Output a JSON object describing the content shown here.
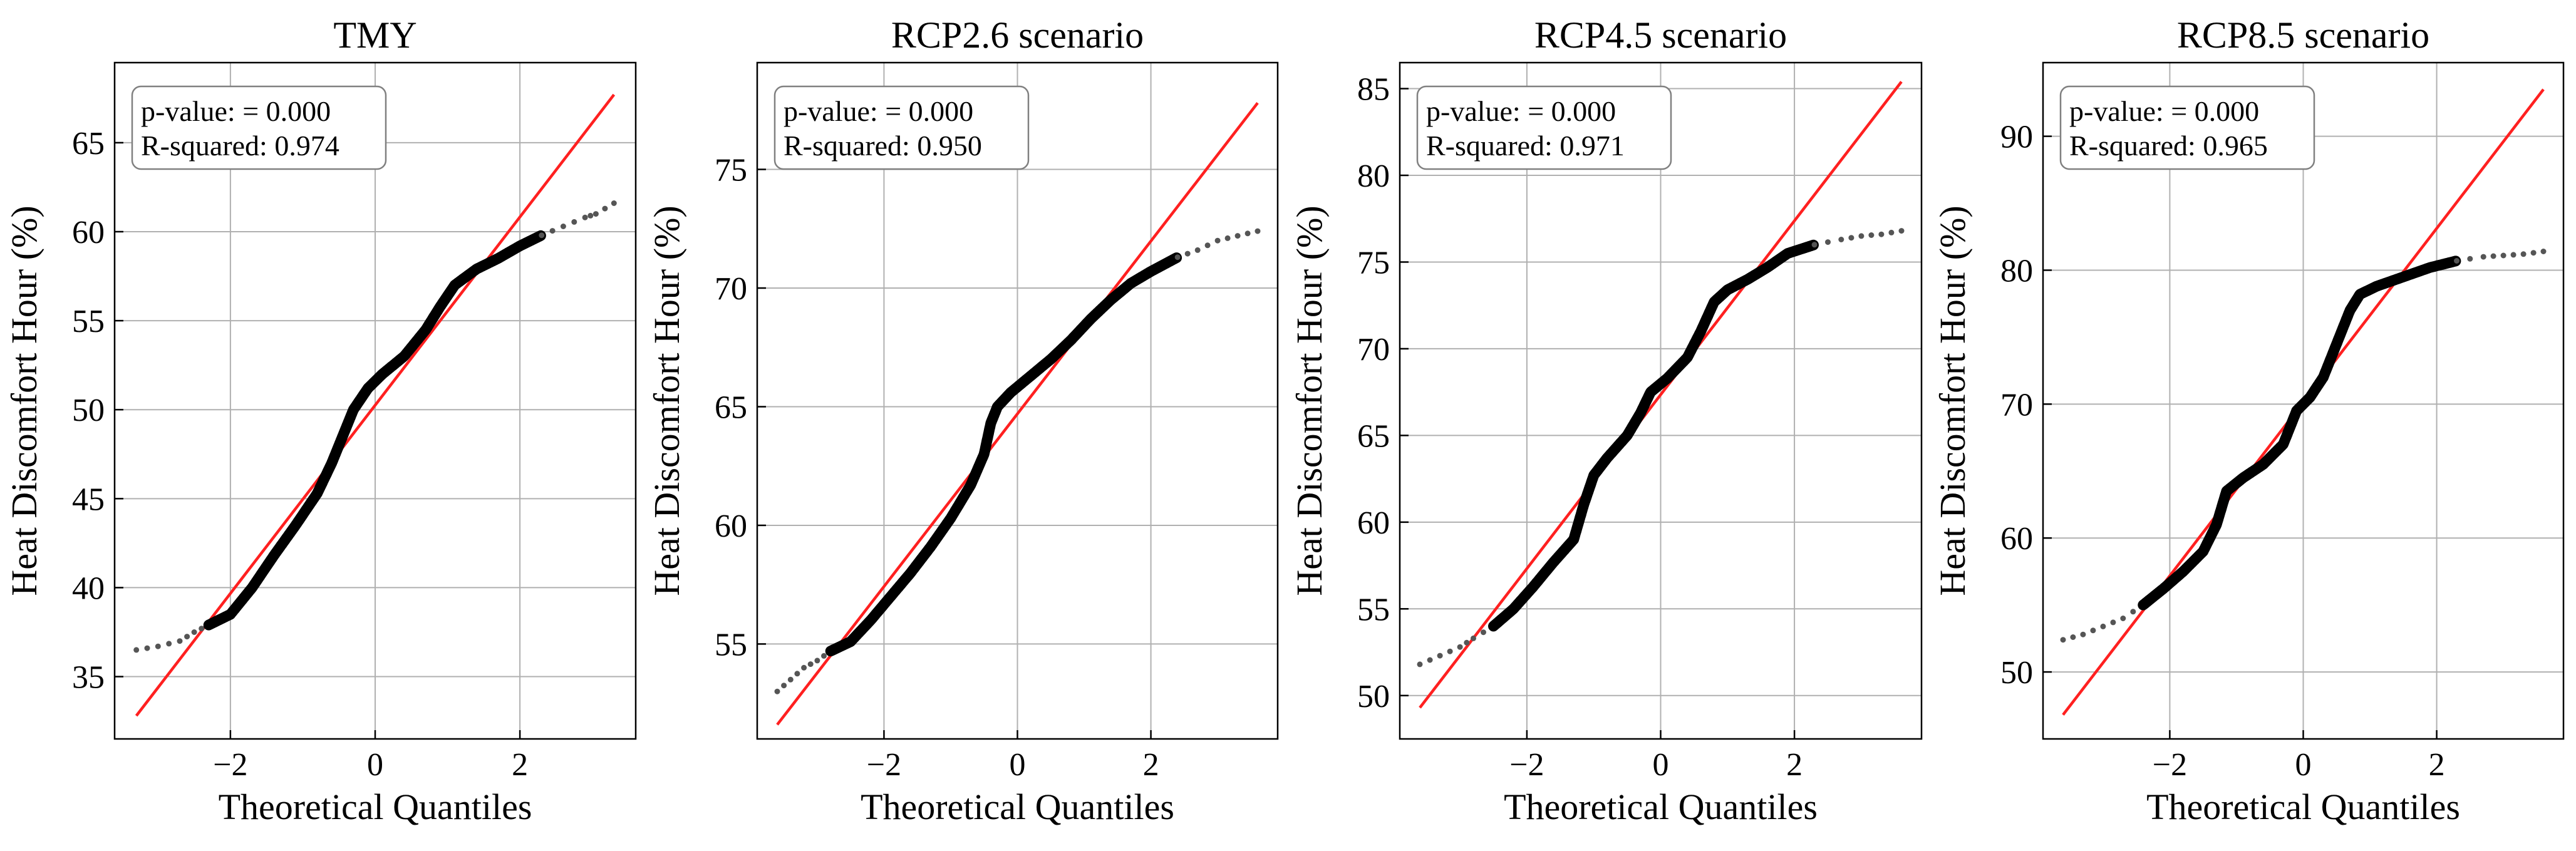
{
  "chart_data": [
    {
      "type": "scatter",
      "title": "TMY",
      "xlabel": "Theoretical Quantiles",
      "ylabel": "Heat Discomfort Hour (%)",
      "xlim": [
        -3.6,
        3.6
      ],
      "ylim": [
        31.5,
        69.5
      ],
      "xticks": [
        -2,
        0,
        2
      ],
      "xtick_labels": [
        "−2",
        "0",
        "2"
      ],
      "yticks": [
        35,
        40,
        45,
        50,
        55,
        60,
        65
      ],
      "ytick_labels": [
        "35",
        "40",
        "45",
        "50",
        "55",
        "60",
        "65"
      ],
      "annotation": {
        "pvalue": "p-value: = 0.000",
        "rsquared": "R-squared: 0.974"
      },
      "fit_line": {
        "x": [
          -3.3,
          3.3
        ],
        "y": [
          32.8,
          67.7
        ]
      },
      "quantiles": [
        [
          -3.3,
          36.5
        ],
        [
          -3.0,
          36.7
        ],
        [
          -2.7,
          37.0
        ],
        [
          -2.5,
          37.5
        ],
        [
          -2.3,
          37.9
        ],
        [
          -2.0,
          38.5
        ],
        [
          -1.7,
          40.0
        ],
        [
          -1.4,
          41.8
        ],
        [
          -1.1,
          43.5
        ],
        [
          -0.8,
          45.3
        ],
        [
          -0.6,
          47.0
        ],
        [
          -0.45,
          48.5
        ],
        [
          -0.3,
          50.0
        ],
        [
          -0.1,
          51.2
        ],
        [
          0.1,
          52.0
        ],
        [
          0.4,
          53.0
        ],
        [
          0.7,
          54.5
        ],
        [
          0.9,
          55.8
        ],
        [
          1.1,
          57.0
        ],
        [
          1.4,
          57.9
        ],
        [
          1.7,
          58.5
        ],
        [
          2.0,
          59.2
        ],
        [
          2.3,
          59.8
        ],
        [
          2.6,
          60.3
        ],
        [
          2.9,
          60.8
        ],
        [
          3.05,
          61.0
        ],
        [
          3.3,
          61.6
        ]
      ]
    },
    {
      "type": "scatter",
      "title": "RCP2.6 scenario",
      "xlabel": "Theoretical Quantiles",
      "ylabel": "Heat Discomfort Hour (%)",
      "xlim": [
        -3.9,
        3.9
      ],
      "ylim": [
        51.0,
        79.5
      ],
      "xticks": [
        -2,
        0,
        2
      ],
      "xtick_labels": [
        "−2",
        "0",
        "2"
      ],
      "yticks": [
        55,
        60,
        65,
        70,
        75
      ],
      "ytick_labels": [
        "55",
        "60",
        "65",
        "70",
        "75"
      ],
      "annotation": {
        "pvalue": "p-value: = 0.000",
        "rsquared": "R-squared: 0.950"
      },
      "fit_line": {
        "x": [
          -3.6,
          3.6
        ],
        "y": [
          51.6,
          77.8
        ]
      },
      "quantiles": [
        [
          -3.6,
          53.0
        ],
        [
          -3.4,
          53.5
        ],
        [
          -3.2,
          54.0
        ],
        [
          -3.0,
          54.3
        ],
        [
          -2.8,
          54.7
        ],
        [
          -2.5,
          55.1
        ],
        [
          -2.2,
          56.0
        ],
        [
          -1.9,
          57.0
        ],
        [
          -1.6,
          58.0
        ],
        [
          -1.3,
          59.1
        ],
        [
          -1.0,
          60.3
        ],
        [
          -0.7,
          61.7
        ],
        [
          -0.5,
          63.0
        ],
        [
          -0.4,
          64.3
        ],
        [
          -0.3,
          65.0
        ],
        [
          -0.1,
          65.6
        ],
        [
          0.2,
          66.3
        ],
        [
          0.5,
          67.0
        ],
        [
          0.8,
          67.8
        ],
        [
          1.1,
          68.7
        ],
        [
          1.4,
          69.5
        ],
        [
          1.7,
          70.2
        ],
        [
          2.0,
          70.7
        ],
        [
          2.4,
          71.3
        ],
        [
          2.7,
          71.6
        ],
        [
          3.0,
          72.0
        ],
        [
          3.3,
          72.2
        ],
        [
          3.6,
          72.4
        ]
      ]
    },
    {
      "type": "scatter",
      "title": "RCP4.5 scenario",
      "xlabel": "Theoretical Quantiles",
      "ylabel": "Heat Discomfort Hour (%)",
      "xlim": [
        -3.9,
        3.9
      ],
      "ylim": [
        47.5,
        86.5
      ],
      "xticks": [
        -2,
        0,
        2
      ],
      "xtick_labels": [
        "−2",
        "0",
        "2"
      ],
      "yticks": [
        50,
        55,
        60,
        65,
        70,
        75,
        80,
        85
      ],
      "ytick_labels": [
        "50",
        "55",
        "60",
        "65",
        "70",
        "75",
        "80",
        "85"
      ],
      "annotation": {
        "pvalue": "p-value: = 0.000",
        "rsquared": "R-squared: 0.971"
      },
      "fit_line": {
        "x": [
          -3.6,
          3.6
        ],
        "y": [
          49.3,
          85.4
        ]
      },
      "quantiles": [
        [
          -3.6,
          51.8
        ],
        [
          -3.3,
          52.3
        ],
        [
          -3.0,
          52.8
        ],
        [
          -2.8,
          53.3
        ],
        [
          -2.5,
          54.0
        ],
        [
          -2.2,
          55.0
        ],
        [
          -1.9,
          56.3
        ],
        [
          -1.6,
          57.7
        ],
        [
          -1.3,
          59.0
        ],
        [
          -1.15,
          61.0
        ],
        [
          -1.0,
          62.7
        ],
        [
          -0.8,
          63.7
        ],
        [
          -0.5,
          65.0
        ],
        [
          -0.3,
          66.3
        ],
        [
          -0.15,
          67.5
        ],
        [
          0.1,
          68.3
        ],
        [
          0.4,
          69.5
        ],
        [
          0.6,
          71.0
        ],
        [
          0.8,
          72.7
        ],
        [
          1.0,
          73.4
        ],
        [
          1.3,
          74.0
        ],
        [
          1.6,
          74.7
        ],
        [
          1.9,
          75.5
        ],
        [
          2.3,
          76.0
        ],
        [
          2.7,
          76.3
        ],
        [
          3.0,
          76.5
        ],
        [
          3.3,
          76.6
        ],
        [
          3.6,
          76.8
        ]
      ]
    },
    {
      "type": "scatter",
      "title": "RCP8.5 scenario",
      "xlabel": "Theoretical Quantiles",
      "ylabel": "Heat Discomfort Hour (%)",
      "xlim": [
        -3.9,
        3.9
      ],
      "ylim": [
        45.0,
        95.5
      ],
      "xticks": [
        -2,
        0,
        2
      ],
      "xtick_labels": [
        "−2",
        "0",
        "2"
      ],
      "yticks": [
        50,
        60,
        70,
        80,
        90
      ],
      "ytick_labels": [
        "50",
        "60",
        "70",
        "80",
        "90"
      ],
      "annotation": {
        "pvalue": "p-value: = 0.000",
        "rsquared": "R-squared: 0.965"
      },
      "fit_line": {
        "x": [
          -3.6,
          3.6
        ],
        "y": [
          46.8,
          93.5
        ]
      },
      "quantiles": [
        [
          -3.6,
          52.4
        ],
        [
          -3.3,
          52.8
        ],
        [
          -3.0,
          53.4
        ],
        [
          -2.7,
          54.0
        ],
        [
          -2.4,
          55.0
        ],
        [
          -2.1,
          56.2
        ],
        [
          -1.8,
          57.5
        ],
        [
          -1.5,
          59.0
        ],
        [
          -1.3,
          61.0
        ],
        [
          -1.15,
          63.5
        ],
        [
          -0.9,
          64.5
        ],
        [
          -0.6,
          65.5
        ],
        [
          -0.3,
          67.0
        ],
        [
          -0.1,
          69.5
        ],
        [
          0.1,
          70.5
        ],
        [
          0.3,
          72.0
        ],
        [
          0.5,
          74.5
        ],
        [
          0.7,
          77.0
        ],
        [
          0.85,
          78.2
        ],
        [
          1.1,
          78.8
        ],
        [
          1.5,
          79.5
        ],
        [
          1.9,
          80.2
        ],
        [
          2.3,
          80.7
        ],
        [
          2.7,
          81.0
        ],
        [
          3.0,
          81.1
        ],
        [
          3.3,
          81.2
        ],
        [
          3.6,
          81.4
        ]
      ]
    }
  ]
}
